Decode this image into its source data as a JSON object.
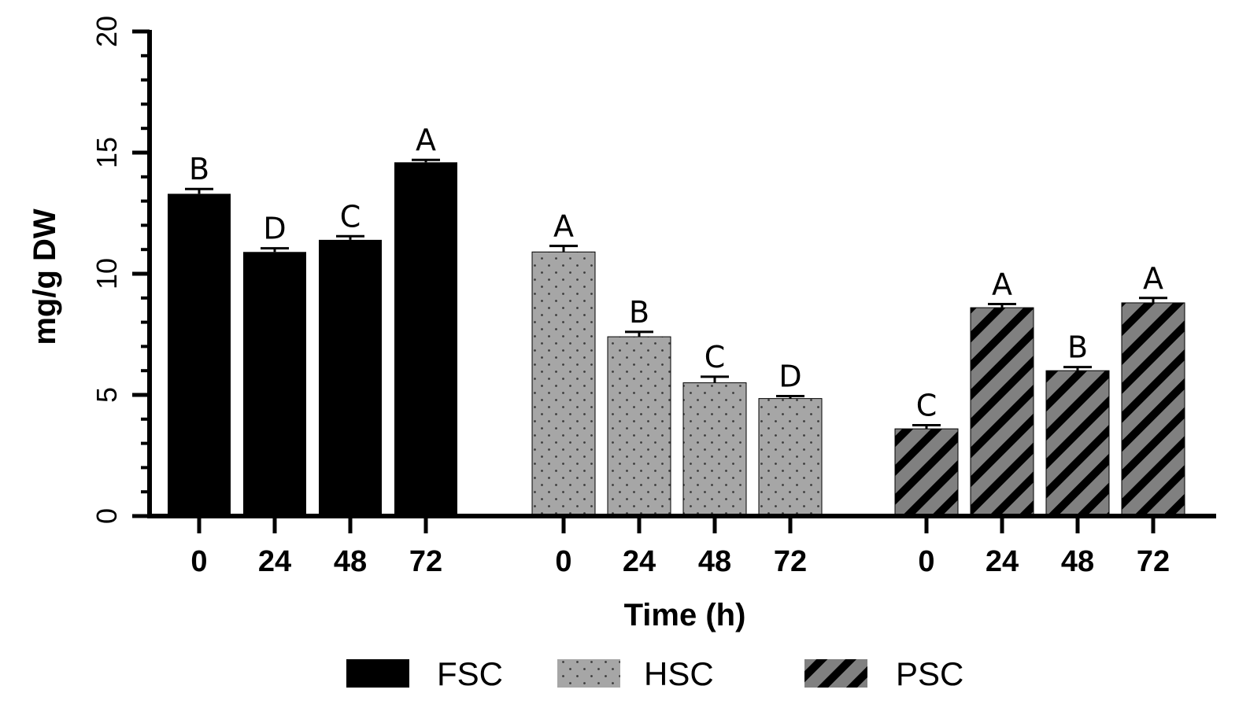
{
  "chart_data": {
    "type": "bar",
    "title": "",
    "xlabel": "Time (h)",
    "ylabel": "mg/g DW",
    "ylim": [
      0,
      20
    ],
    "yticks": [
      "0",
      "5",
      "10",
      "15",
      "20"
    ],
    "categories": [
      "0",
      "24",
      "48",
      "72"
    ],
    "series": [
      {
        "name": "FSC",
        "color": "#000000",
        "pattern": "solid",
        "values": [
          13.3,
          10.9,
          11.4,
          14.6
        ],
        "errors": [
          0.2,
          0.15,
          0.15,
          0.1
        ],
        "letters": [
          "B",
          "D",
          "C",
          "A"
        ]
      },
      {
        "name": "HSC",
        "color": "#a6a6a6",
        "pattern": "dotted",
        "values": [
          10.9,
          7.4,
          5.5,
          4.85
        ],
        "errors": [
          0.25,
          0.2,
          0.25,
          0.1
        ],
        "letters": [
          "A",
          "B",
          "C",
          "D"
        ]
      },
      {
        "name": "PSC",
        "color": "#7f7f7f",
        "pattern": "hatched",
        "values": [
          3.6,
          8.6,
          6.0,
          8.8
        ],
        "errors": [
          0.15,
          0.15,
          0.15,
          0.2
        ],
        "letters": [
          "C",
          "A",
          "B",
          "A"
        ]
      }
    ],
    "legend": {
      "placement": "bottom",
      "entries": [
        "FSC",
        "HSC",
        "PSC"
      ]
    }
  }
}
